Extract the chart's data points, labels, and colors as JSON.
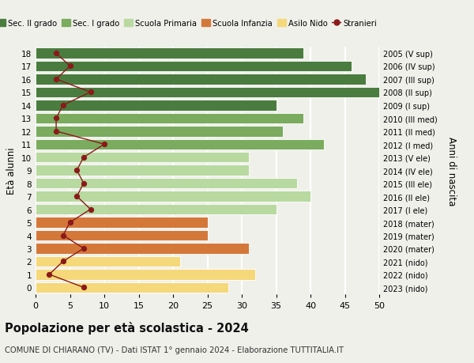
{
  "ages": [
    0,
    1,
    2,
    3,
    4,
    5,
    6,
    7,
    8,
    9,
    10,
    11,
    12,
    13,
    14,
    15,
    16,
    17,
    18
  ],
  "right_labels": [
    "2023 (nido)",
    "2022 (nido)",
    "2021 (nido)",
    "2020 (mater)",
    "2019 (mater)",
    "2018 (mater)",
    "2017 (I ele)",
    "2016 (II ele)",
    "2015 (III ele)",
    "2014 (IV ele)",
    "2013 (V ele)",
    "2012 (I med)",
    "2011 (II med)",
    "2010 (III med)",
    "2009 (I sup)",
    "2008 (II sup)",
    "2007 (III sup)",
    "2006 (IV sup)",
    "2005 (V sup)"
  ],
  "bar_values": [
    28,
    32,
    21,
    31,
    25,
    25,
    35,
    40,
    38,
    31,
    31,
    42,
    36,
    39,
    35,
    50,
    48,
    46,
    39
  ],
  "bar_colors": [
    "#f5d87a",
    "#f5d87a",
    "#f5d87a",
    "#d4783a",
    "#d4783a",
    "#d4783a",
    "#b8d9a0",
    "#b8d9a0",
    "#b8d9a0",
    "#b8d9a0",
    "#b8d9a0",
    "#7aab5e",
    "#7aab5e",
    "#7aab5e",
    "#4a7c3f",
    "#4a7c3f",
    "#4a7c3f",
    "#4a7c3f",
    "#4a7c3f"
  ],
  "stranieri_values": [
    7,
    2,
    4,
    7,
    4,
    5,
    8,
    6,
    7,
    6,
    7,
    10,
    3,
    3,
    4,
    8,
    3,
    5,
    3
  ],
  "stranieri_color": "#8b1a1a",
  "legend_items": [
    {
      "label": "Sec. II grado",
      "color": "#4a7c3f"
    },
    {
      "label": "Sec. I grado",
      "color": "#7aab5e"
    },
    {
      "label": "Scuola Primaria",
      "color": "#b8d9a0"
    },
    {
      "label": "Scuola Infanzia",
      "color": "#d4783a"
    },
    {
      "label": "Asilo Nido",
      "color": "#f5d87a"
    },
    {
      "label": "Stranieri",
      "color": "#8b1a1a"
    }
  ],
  "ylabel": "Età alunni",
  "right_ylabel": "Anni di nascita",
  "xlim": [
    0,
    50
  ],
  "xticks": [
    0,
    5,
    10,
    15,
    20,
    25,
    30,
    35,
    40,
    45,
    50
  ],
  "title": "Popolazione per età scolastica - 2024",
  "subtitle": "COMUNE DI CHIARANO (TV) - Dati ISTAT 1° gennaio 2024 - Elaborazione TUTTITALIA.IT",
  "background_color": "#f0f0eb",
  "grid_color": "#ffffff"
}
